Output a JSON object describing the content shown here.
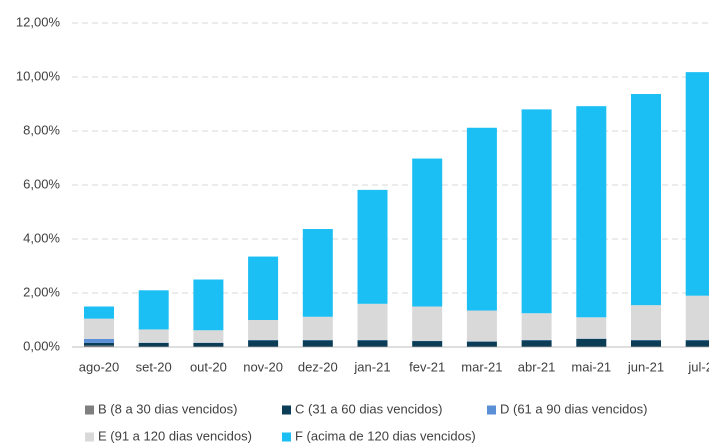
{
  "chart_data": {
    "type": "stacked_bar",
    "categories": [
      "ago-20",
      "set-20",
      "out-20",
      "nov-20",
      "dez-20",
      "jan-21",
      "fev-21",
      "mar-21",
      "abr-21",
      "mai-21",
      "jun-21",
      "jul-2"
    ],
    "series": [
      {
        "name": "B (8 a 30 dias vencidos)",
        "color": "#7f7f7f",
        "values": [
          0.05,
          0.02,
          0.02,
          0.02,
          0.02,
          0.02,
          0.02,
          0.02,
          0.02,
          0.02,
          0.02,
          0.02
        ]
      },
      {
        "name": "C (31 a 60 dias vencidos)",
        "color": "#0b3d57",
        "values": [
          0.1,
          0.13,
          0.13,
          0.23,
          0.23,
          0.23,
          0.2,
          0.18,
          0.23,
          0.28,
          0.23,
          0.23
        ]
      },
      {
        "name": "D (61 a 90 dias vencidos)",
        "color": "#5b8fd6",
        "values": [
          0.15,
          0.01,
          0.01,
          0.01,
          0.01,
          0.01,
          0.01,
          0.01,
          0.01,
          0.01,
          0.01,
          0.01
        ]
      },
      {
        "name": "E (91 a 120 dias vencidos)",
        "color": "#d9d9d9",
        "values": [
          0.75,
          0.49,
          0.46,
          0.74,
          0.86,
          1.34,
          1.27,
          1.14,
          0.99,
          0.79,
          1.29,
          1.64
        ]
      },
      {
        "name": "F (acima de 120 dias vencidos)",
        "color": "#1cbff3",
        "values": [
          0.45,
          1.45,
          1.88,
          2.35,
          3.25,
          4.22,
          5.48,
          6.77,
          7.55,
          7.82,
          7.82,
          8.28
        ]
      }
    ],
    "ylim": [
      0,
      12
    ],
    "yticks": [
      {
        "value": 0,
        "label": "0,00%"
      },
      {
        "value": 2,
        "label": "2,00%"
      },
      {
        "value": 4,
        "label": "4,00%"
      },
      {
        "value": 6,
        "label": "6,00%"
      },
      {
        "value": 8,
        "label": "8,00%"
      },
      {
        "value": 10,
        "label": "10,00%"
      },
      {
        "value": 12,
        "label": "12,00%"
      }
    ],
    "grid": true
  }
}
